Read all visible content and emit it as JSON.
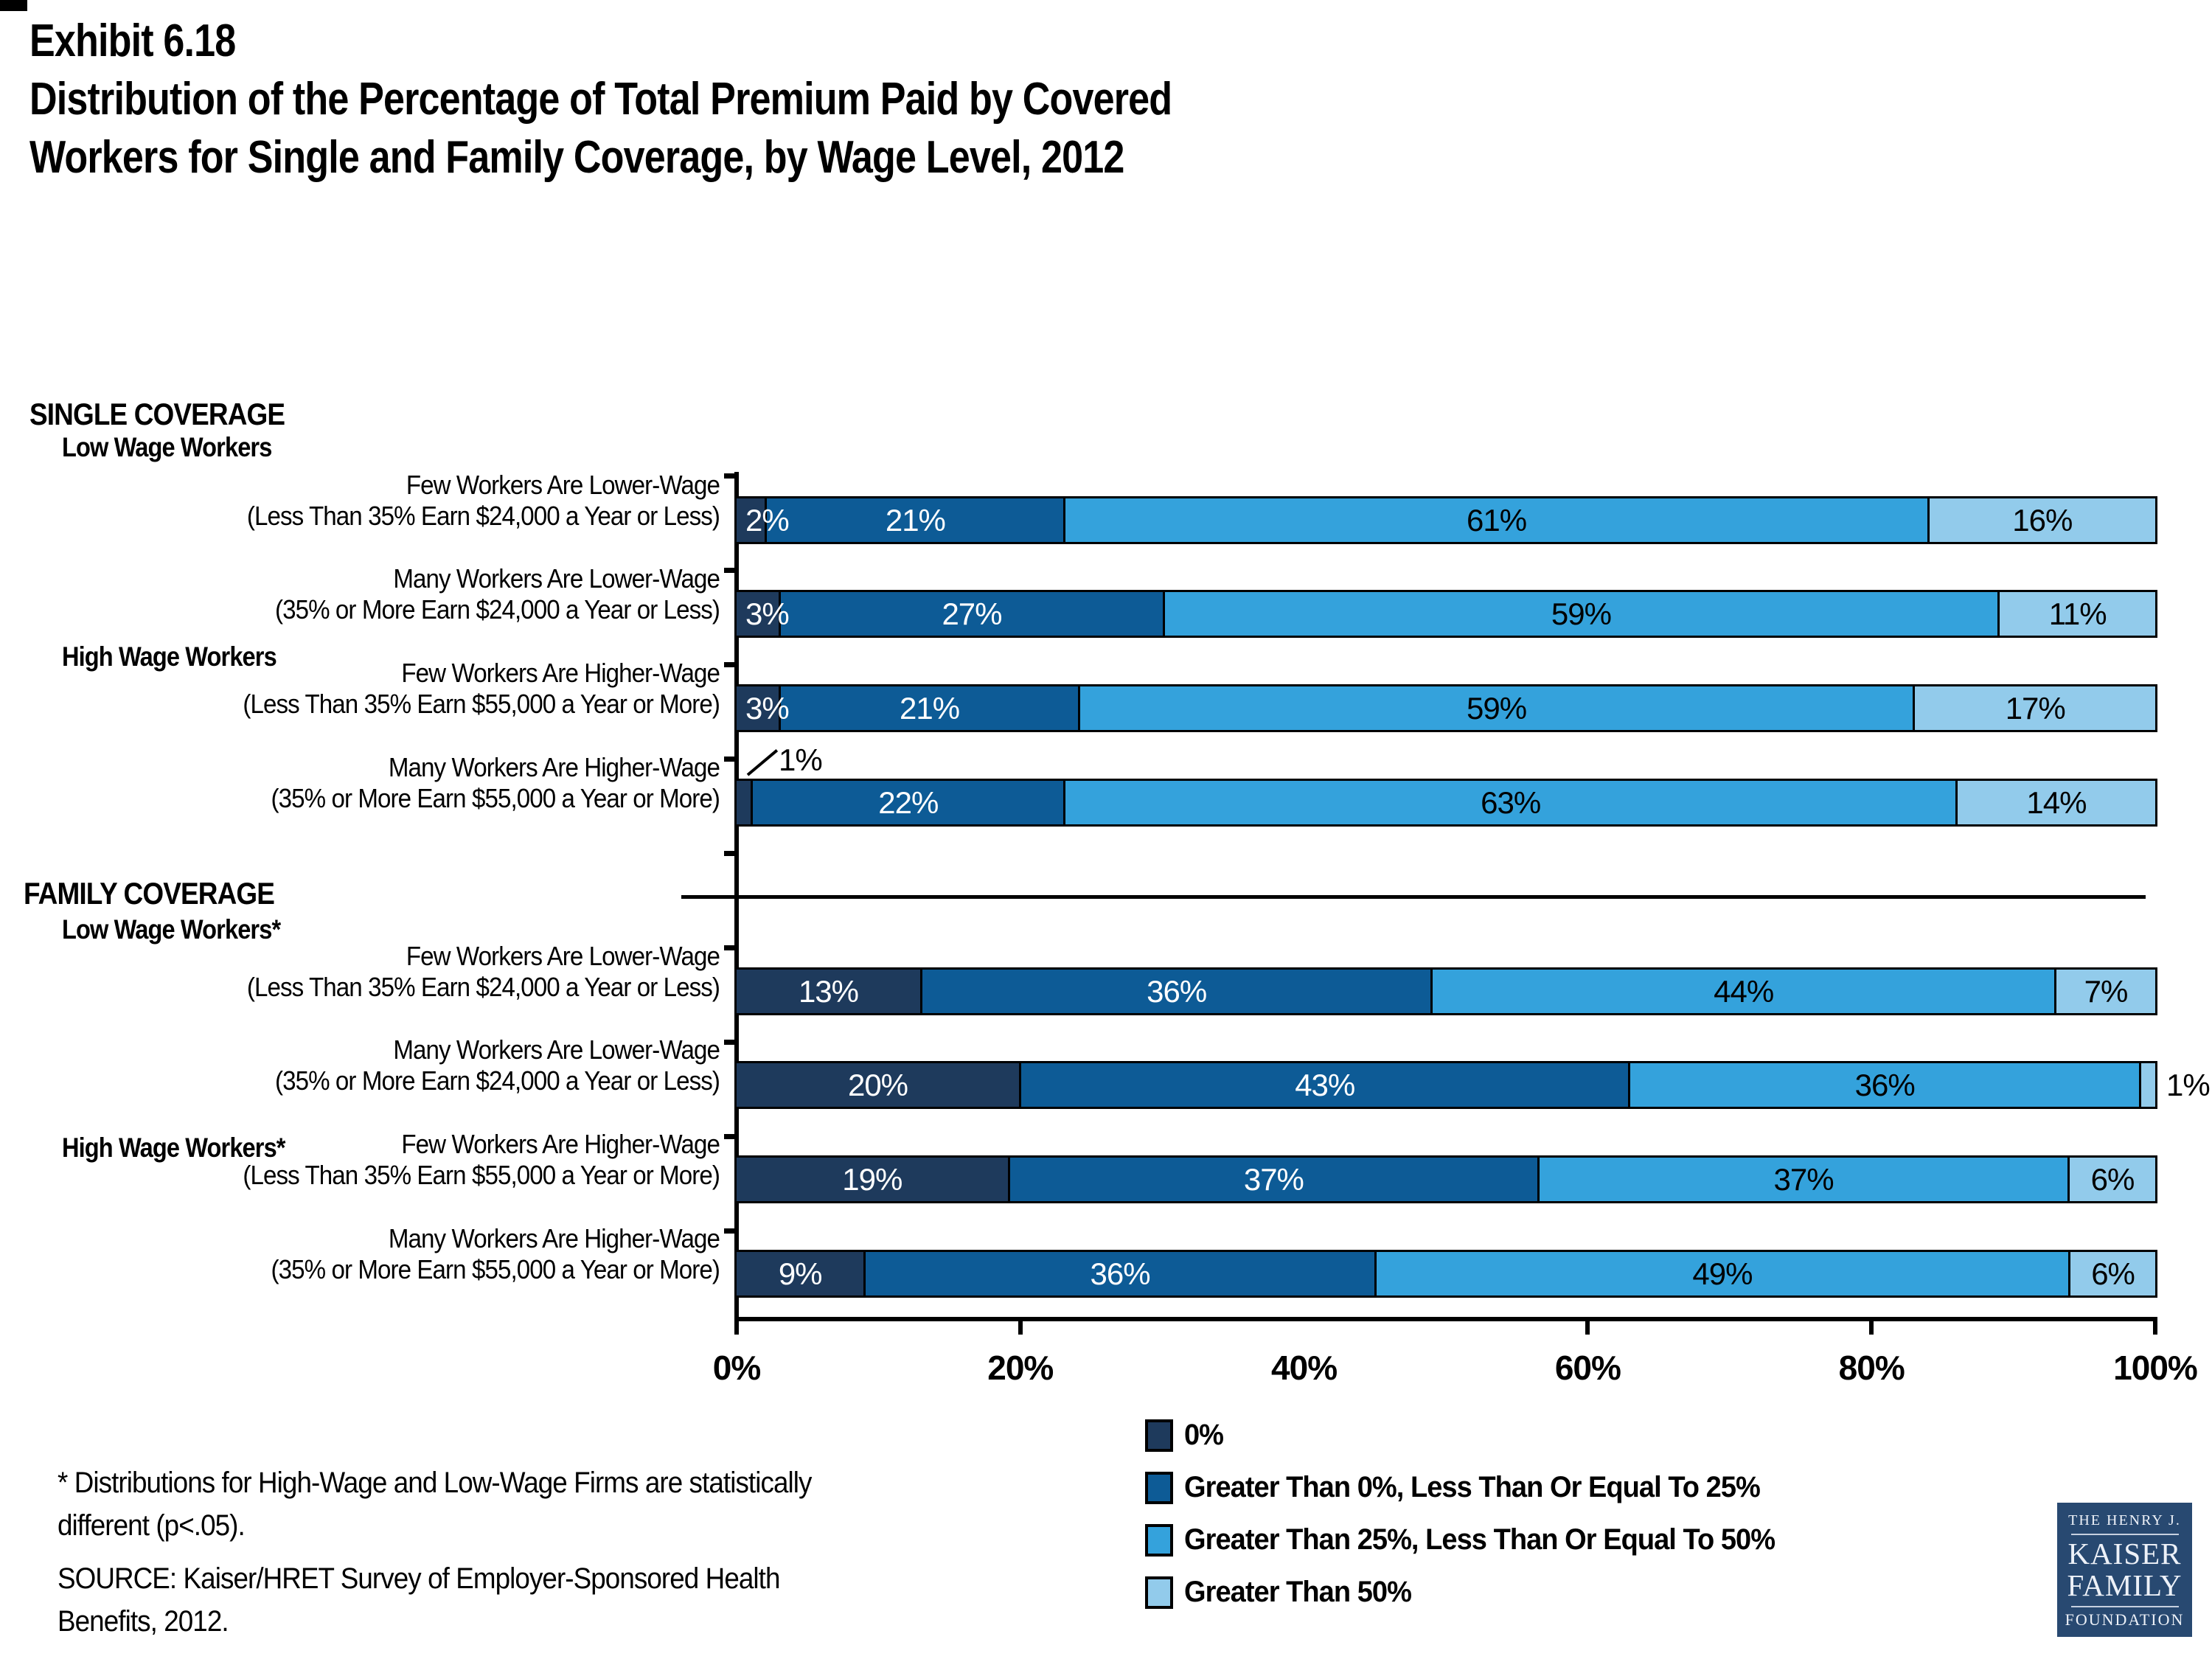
{
  "title": {
    "exhibit": "Exhibit 6.18",
    "line1": "Distribution of the Percentage of Total Premium Paid by Covered",
    "line2": "Workers for Single and Family Coverage, by Wage Level, 2012"
  },
  "colors": {
    "series": [
      "#1E3A5C",
      "#0D5B96",
      "#34A2DC",
      "#92CBEB"
    ],
    "axis": "#000000",
    "logo_bg": "#284971"
  },
  "chart_data": {
    "type": "bar",
    "orientation": "horizontal-stacked",
    "xlim": [
      0,
      100
    ],
    "x_ticks": [
      "0%",
      "20%",
      "40%",
      "60%",
      "80%",
      "100%"
    ],
    "x_tick_positions": [
      0,
      20,
      40,
      60,
      80,
      100
    ],
    "series_names": [
      "0%",
      "Greater Than 0%, Less Than Or Equal To 25%",
      "Greater Than 25%, Less Than Or Equal To 50%",
      "Greater Than 50%"
    ],
    "sections": [
      {
        "header": "SINGLE COVERAGE",
        "groups": [
          {
            "subheader": "Low Wage Workers",
            "rows": [
              {
                "label1": "Few Workers Are Lower-Wage",
                "label2": "(Less Than 35% Earn $24,000 a Year or Less)",
                "values": [
                  2,
                  21,
                  61,
                  16
                ],
                "labels": [
                  "2%",
                  "21%",
                  "61%",
                  "16%"
                ],
                "modes": [
                  "overlap",
                  "in",
                  "in",
                  "in"
                ]
              },
              {
                "label1": "Many Workers Are Lower-Wage",
                "label2": "(35% or More Earn $24,000 a Year or Less)",
                "values": [
                  3,
                  27,
                  59,
                  11
                ],
                "labels": [
                  "3%",
                  "27%",
                  "59%",
                  "11%"
                ],
                "modes": [
                  "overlap",
                  "in",
                  "in",
                  "in"
                ]
              }
            ]
          },
          {
            "subheader": "High Wage Workers",
            "rows": [
              {
                "label1": "Few Workers Are Higher-Wage",
                "label2": "(Less Than 35% Earn $55,000 a Year or More)",
                "values": [
                  3,
                  21,
                  59,
                  17
                ],
                "labels": [
                  "3%",
                  "21%",
                  "59%",
                  "17%"
                ],
                "modes": [
                  "overlap",
                  "in",
                  "in",
                  "in"
                ]
              },
              {
                "label1": "Many Workers Are Higher-Wage",
                "label2": "(35% or More Earn $55,000 a Year or More)",
                "values": [
                  1,
                  22,
                  63,
                  14
                ],
                "labels": [
                  "1%",
                  "22%",
                  "63%",
                  "14%"
                ],
                "modes": [
                  "callout",
                  "in",
                  "in",
                  "in"
                ]
              }
            ]
          }
        ]
      },
      {
        "header": "FAMILY COVERAGE",
        "groups": [
          {
            "subheader": "Low Wage Workers*",
            "rows": [
              {
                "label1": "Few Workers Are Lower-Wage",
                "label2": "(Less Than 35% Earn $24,000 a Year or Less)",
                "values": [
                  13,
                  36,
                  44,
                  7
                ],
                "labels": [
                  "13%",
                  "36%",
                  "44%",
                  "7%"
                ],
                "modes": [
                  "in",
                  "in",
                  "in",
                  "in"
                ]
              },
              {
                "label1": "Many Workers Are Lower-Wage",
                "label2": "(35% or More Earn $24,000 a Year or Less)",
                "values": [
                  20,
                  43,
                  36,
                  1
                ],
                "labels": [
                  "20%",
                  "43%",
                  "36%",
                  "1%"
                ],
                "modes": [
                  "in",
                  "in",
                  "in",
                  "outside"
                ]
              }
            ]
          },
          {
            "subheader": "High Wage Workers*",
            "rows": [
              {
                "label1": "Few Workers Are Higher-Wage",
                "label2": "(Less Than 35% Earn $55,000 a Year or More)",
                "values": [
                  19,
                  37,
                  37,
                  6
                ],
                "labels": [
                  "19%",
                  "37%",
                  "37%",
                  "6%"
                ],
                "modes": [
                  "in",
                  "in",
                  "in",
                  "in"
                ]
              },
              {
                "label1": "Many Workers Are Higher-Wage",
                "label2": "(35% or More Earn $55,000 a Year or More)",
                "values": [
                  9,
                  36,
                  49,
                  6
                ],
                "labels": [
                  "9%",
                  "36%",
                  "49%",
                  "6%"
                ],
                "modes": [
                  "in",
                  "in",
                  "in",
                  "in"
                ]
              }
            ]
          }
        ]
      }
    ]
  },
  "legend": {
    "items": [
      {
        "label": "0%",
        "color": "#1E3A5C"
      },
      {
        "label": "Greater Than 0%, Less Than Or Equal To 25%",
        "color": "#0D5B96"
      },
      {
        "label": "Greater Than 25%, Less Than Or Equal To 50%",
        "color": "#34A2DC"
      },
      {
        "label": "Greater Than 50%",
        "color": "#92CBEB"
      }
    ]
  },
  "footnote": {
    "line1": "* Distributions for High-Wage and Low-Wage Firms are statistically",
    "line2": "different (p<.05)."
  },
  "source": {
    "line1": "SOURCE:  Kaiser/HRET Survey of Employer-Sponsored Health",
    "line2": "Benefits, 2012."
  },
  "logo": {
    "top": "THE HENRY J.",
    "name1": "KAISER",
    "name2": "FAMILY",
    "bottom": "FOUNDATION"
  }
}
